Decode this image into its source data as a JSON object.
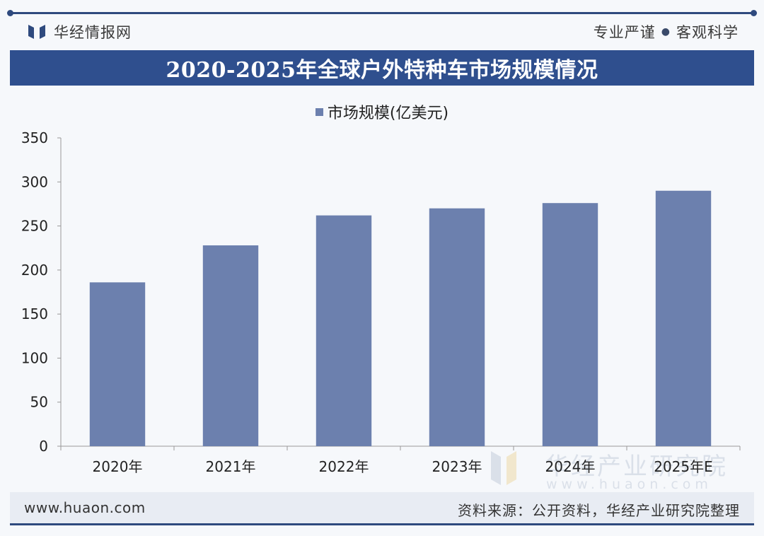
{
  "header": {
    "brand": "华经情报网",
    "slogan_left": "专业严谨",
    "slogan_dot": "●",
    "slogan_right": "客观科学"
  },
  "chart_data": {
    "type": "bar",
    "title": "2020-2025年全球户外特种车市场规模情况",
    "categories": [
      "2020年",
      "2021年",
      "2022年",
      "2023年",
      "2024年",
      "2025年E"
    ],
    "series": [
      {
        "name": "市场规模(亿美元)",
        "values": [
          186,
          228,
          262,
          270,
          276,
          290
        ]
      }
    ],
    "ylim": [
      0,
      350
    ],
    "yticks": [
      0,
      50,
      100,
      150,
      200,
      250,
      300,
      350
    ],
    "legend_position": "top-center",
    "grid": false,
    "colors": {
      "bar": "#6c80ae",
      "axis": "#999999"
    }
  },
  "watermark": {
    "text": "华经产业研究院",
    "url": "www.huaon.com"
  },
  "footer": {
    "url": "www.huaon.com",
    "source": "资料来源：公开资料，华经产业研究院整理"
  }
}
